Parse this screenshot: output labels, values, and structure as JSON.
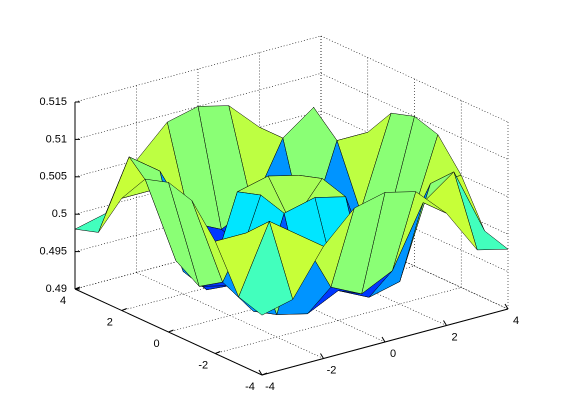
{
  "chart_data": {
    "type": "surface",
    "x": [
      -4,
      -3,
      -2,
      -1,
      0,
      1,
      2,
      3,
      4
    ],
    "y": [
      -4,
      -3,
      -2,
      -1,
      0,
      1,
      2,
      3,
      4
    ],
    "z": [
      [
        0.498,
        0.499,
        0.505,
        0.509,
        0.51,
        0.509,
        0.505,
        0.499,
        0.498
      ],
      [
        0.499,
        0.508,
        0.505,
        0.497,
        0.495,
        0.497,
        0.505,
        0.508,
        0.499
      ],
      [
        0.505,
        0.505,
        0.493,
        0.492,
        0.494,
        0.492,
        0.493,
        0.505,
        0.505
      ],
      [
        0.509,
        0.497,
        0.492,
        0.504,
        0.505,
        0.504,
        0.492,
        0.497,
        0.509
      ],
      [
        0.51,
        0.495,
        0.494,
        0.505,
        0.5,
        0.505,
        0.494,
        0.495,
        0.51
      ],
      [
        0.509,
        0.497,
        0.492,
        0.504,
        0.505,
        0.504,
        0.492,
        0.497,
        0.509
      ],
      [
        0.505,
        0.505,
        0.493,
        0.492,
        0.494,
        0.492,
        0.493,
        0.505,
        0.505
      ],
      [
        0.499,
        0.508,
        0.505,
        0.497,
        0.495,
        0.497,
        0.505,
        0.508,
        0.499
      ],
      [
        0.498,
        0.499,
        0.505,
        0.509,
        0.51,
        0.509,
        0.505,
        0.499,
        0.498
      ]
    ],
    "colormap": "jet",
    "xlim": [
      -4,
      4
    ],
    "ylim": [
      -4,
      4
    ],
    "zlim": [
      0.49,
      0.515
    ],
    "xticks": [
      -4,
      -2,
      0,
      2,
      4
    ],
    "yticks": [
      -4,
      -2,
      0,
      2,
      4
    ],
    "zticks": [
      0.49,
      0.495,
      0.5,
      0.505,
      0.51,
      0.515
    ],
    "grid": true
  }
}
